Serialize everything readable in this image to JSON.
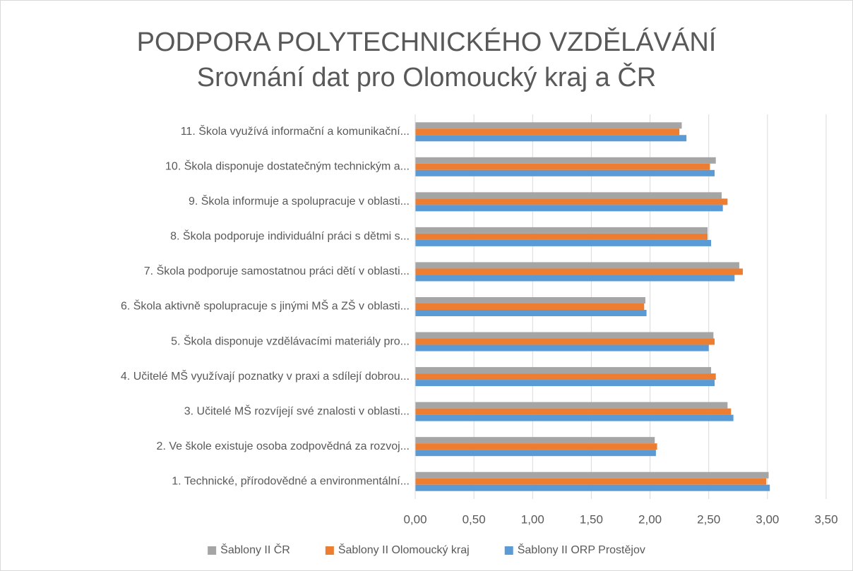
{
  "chart_data": {
    "type": "bar",
    "orientation": "horizontal",
    "title": "PODPORA POLYTECHNICKÉHO VZDĚLÁVÁNÍ",
    "subtitle": "Srovnání dat pro Olomoucký kraj a ČR",
    "categories": [
      "1. Technické, přírodovědné a environmentální...",
      "2. Ve škole existuje osoba zodpovědná za rozvoj...",
      "3. Učitelé MŠ rozvíjejí své znalosti v oblasti...",
      "4. Učitelé MŠ využívají poznatky v praxi a sdílejí dobrou...",
      "5. Škola disponuje vzdělávacími materiály pro...",
      "6. Škola aktivně spolupracuje s jinými MŠ a ZŠ v oblasti...",
      "7. Škola podporuje samostatnou práci dětí v oblasti...",
      "8. Škola podporuje individuální práci s dětmi s...",
      "9. Škola informuje a spolupracuje v oblasti...",
      "10. Škola disponuje dostatečným technickým a...",
      "11. Škola využívá informační a komunikační..."
    ],
    "series": [
      {
        "name": "Šablony II ČR",
        "color": "#a5a5a5",
        "values": [
          3.01,
          2.04,
          2.66,
          2.52,
          2.54,
          1.96,
          2.76,
          2.49,
          2.61,
          2.56,
          2.27
        ]
      },
      {
        "name": "Šablony II Olomoucký kraj",
        "color": "#ed7d31",
        "values": [
          2.99,
          2.06,
          2.69,
          2.56,
          2.55,
          1.95,
          2.79,
          2.49,
          2.66,
          2.51,
          2.25
        ]
      },
      {
        "name": "Šablony II ORP Prostějov",
        "color": "#5b9bd5",
        "values": [
          3.02,
          2.05,
          2.71,
          2.55,
          2.5,
          1.97,
          2.72,
          2.52,
          2.62,
          2.55,
          2.31
        ]
      }
    ],
    "xlim": [
      0,
      3.5
    ],
    "xticks": [
      {
        "value": 0,
        "label": "0,00"
      },
      {
        "value": 0.5,
        "label": "0,50"
      },
      {
        "value": 1,
        "label": "1,00"
      },
      {
        "value": 1.5,
        "label": "1,50"
      },
      {
        "value": 2,
        "label": "2,00"
      },
      {
        "value": 2.5,
        "label": "2,50"
      },
      {
        "value": 3,
        "label": "3,00"
      },
      {
        "value": 3.5,
        "label": "3,50"
      }
    ],
    "grid": true,
    "legend": "bottom"
  }
}
